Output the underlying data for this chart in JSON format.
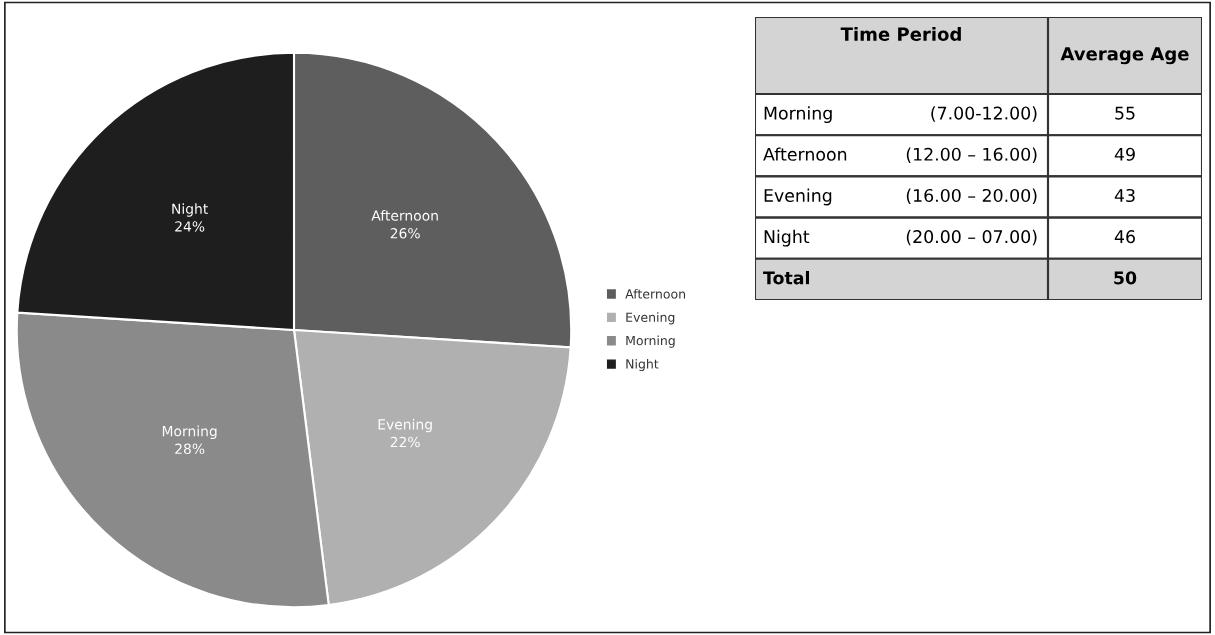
{
  "chart_data": [
    {
      "type": "pie",
      "categories": [
        "Afternoon",
        "Evening",
        "Morning",
        "Night"
      ],
      "values": [
        26,
        22,
        28,
        24
      ],
      "value_labels": [
        "26%",
        "22%",
        "28%",
        "24%"
      ],
      "colors": [
        "#5e5e5e",
        "#b0b0b0",
        "#8a8a8a",
        "#1e1e1e"
      ],
      "legend": "right"
    },
    {
      "type": "other",
      "xlabel": "Time Period",
      "ylabel": "Average Age",
      "categories": [
        "Morning",
        "Afternoon",
        "Evening",
        "Night",
        "Total"
      ],
      "annotations": [
        "(7.00-12.00)",
        "(12.00 – 16.00)",
        "(16.00 – 20.00)",
        "(20.00 – 07.00)"
      ],
      "values": [
        55,
        49,
        43,
        46,
        50
      ],
      "data_labels": true
    }
  ]
}
